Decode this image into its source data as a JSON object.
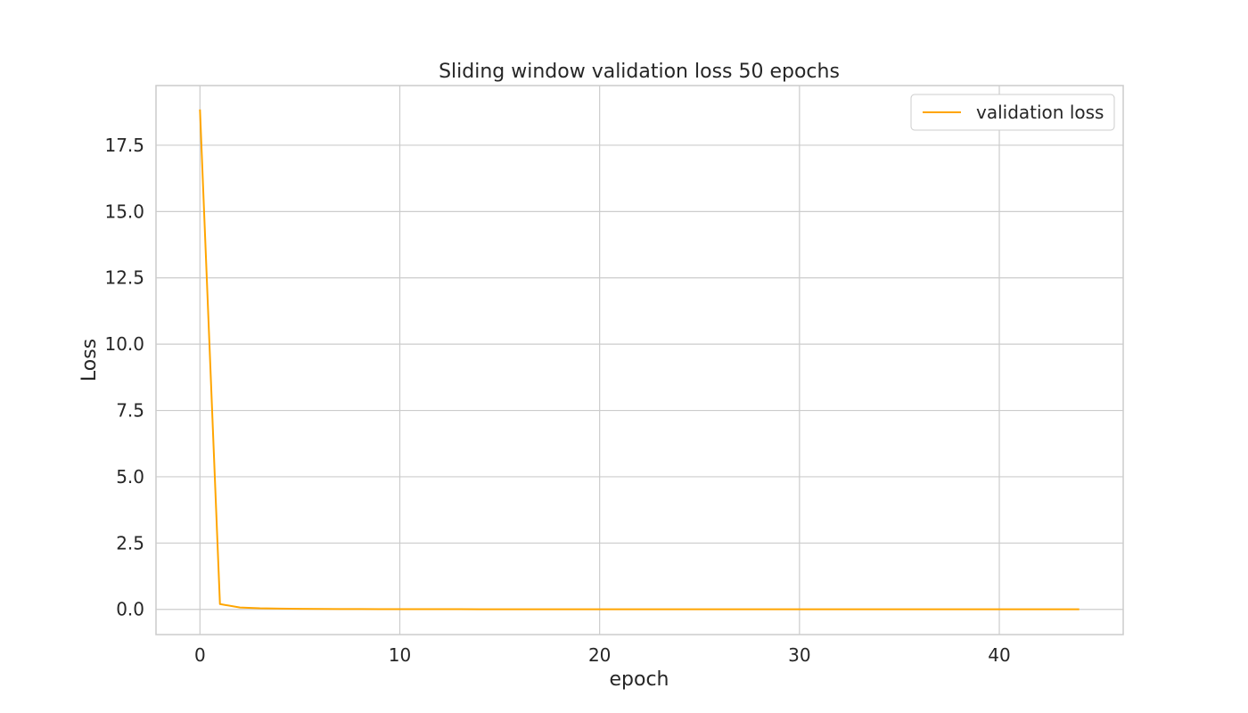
{
  "chart_data": {
    "type": "line",
    "title": "Sliding window validation loss 50 epochs",
    "xlabel": "epoch",
    "ylabel": "Loss",
    "xlim": [
      -2.2,
      46.2
    ],
    "ylim": [
      -0.95,
      19.75
    ],
    "xticks": [
      0,
      10,
      20,
      30,
      40
    ],
    "yticks": [
      0.0,
      2.5,
      5.0,
      7.5,
      10.0,
      12.5,
      15.0,
      17.5
    ],
    "ytick_labels": [
      "0.0",
      "2.5",
      "5.0",
      "7.5",
      "10.0",
      "12.5",
      "15.0",
      "17.5"
    ],
    "grid": true,
    "legend_position": "upper right",
    "series": [
      {
        "name": "validation loss",
        "color": "#ffa500",
        "x": [
          0,
          1,
          2,
          3,
          4,
          5,
          6,
          7,
          8,
          9,
          10,
          11,
          12,
          13,
          14,
          15,
          16,
          17,
          18,
          19,
          20,
          21,
          22,
          23,
          24,
          25,
          26,
          27,
          28,
          29,
          30,
          31,
          32,
          33,
          34,
          35,
          36,
          37,
          38,
          39,
          40,
          41,
          42,
          43,
          44
        ],
        "y": [
          18.85,
          0.2,
          0.07,
          0.04,
          0.03,
          0.02,
          0.015,
          0.012,
          0.01,
          0.009,
          0.008,
          0.007,
          0.006,
          0.006,
          0.005,
          0.005,
          0.005,
          0.004,
          0.004,
          0.004,
          0.004,
          0.003,
          0.003,
          0.003,
          0.003,
          0.003,
          0.003,
          0.003,
          0.002,
          0.002,
          0.002,
          0.002,
          0.002,
          0.002,
          0.002,
          0.002,
          0.002,
          0.002,
          0.002,
          0.002,
          0.002,
          0.002,
          0.002,
          0.002,
          0.002
        ]
      }
    ]
  }
}
